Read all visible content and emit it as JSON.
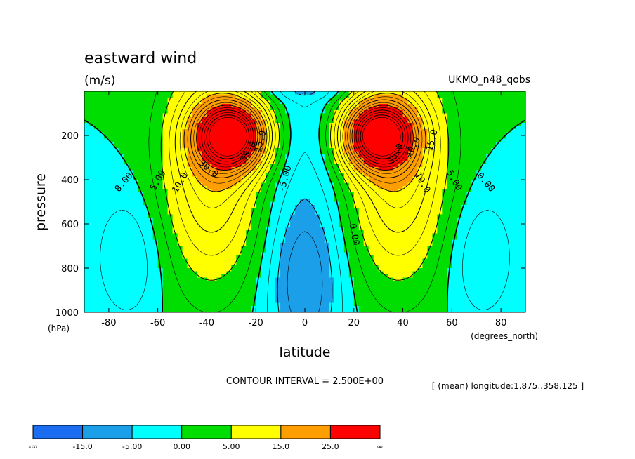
{
  "chart_data": {
    "type": "contour",
    "title": "eastward wind",
    "units": "(m/s)",
    "dataset": "UKMO_n48_qobs",
    "xlabel": "latitude",
    "xunits": "(degrees_north)",
    "ylabel": "pressure",
    "yunits": "(hPa)",
    "xlim": [
      -90,
      90
    ],
    "ylim": [
      1000,
      0
    ],
    "xticks": [
      -80,
      -60,
      -40,
      -20,
      0,
      20,
      40,
      60,
      80
    ],
    "yticks": [
      200,
      400,
      600,
      800,
      1000
    ],
    "contour_interval_text": "CONTOUR INTERVAL = 2.500E+00",
    "mean_note": "[ (mean) longitude:1.875..358.125 ]",
    "contour_labels": [
      "0.00",
      "5.00",
      "10.0",
      "15.0",
      "30.0",
      "35.0",
      "-5.00"
    ],
    "jets": [
      {
        "lat": -30,
        "p": 200,
        "max": 37.5
      },
      {
        "lat": 30,
        "p": 200,
        "max": 37.5
      }
    ],
    "colorbar": {
      "labels": [
        "-∞",
        "-15.0",
        "-5.00",
        "0.00",
        "5.00",
        "15.0",
        "25.0",
        "∞"
      ],
      "colors": [
        "#1a6cf0",
        "#1a9fe8",
        "#00ffff",
        "#00dd00",
        "#ffff00",
        "#ff9e00",
        "#ff0000"
      ]
    }
  }
}
